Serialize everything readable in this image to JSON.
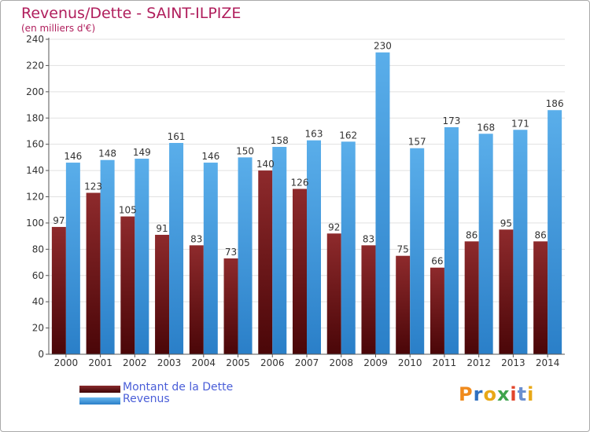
{
  "chart_data": {
    "type": "bar",
    "title": "Revenus/Dette - SAINT-ILPIZE",
    "subtitle": "(en milliers d'€)",
    "categories": [
      "2000",
      "2001",
      "2002",
      "2003",
      "2004",
      "2005",
      "2006",
      "2007",
      "2008",
      "2009",
      "2010",
      "2011",
      "2012",
      "2013",
      "2014"
    ],
    "series": [
      {
        "name": "Montant de la Dette",
        "values": [
          97,
          123,
          105,
          91,
          83,
          73,
          140,
          126,
          92,
          83,
          75,
          66,
          86,
          95,
          86
        ],
        "color": "#7a1f22"
      },
      {
        "name": "Revenus",
        "values": [
          146,
          148,
          149,
          161,
          146,
          150,
          158,
          163,
          162,
          230,
          157,
          173,
          168,
          171,
          186
        ],
        "color": "#4ea6e4"
      }
    ],
    "ylim": [
      0,
      240
    ],
    "yticks": [
      0,
      20,
      40,
      60,
      80,
      100,
      120,
      140,
      160,
      180,
      200,
      220,
      240
    ],
    "grid": true,
    "legend_position": "bottom-left"
  },
  "legend": [
    {
      "label": "Montant de la Dette",
      "color": "#7a1f22"
    },
    {
      "label": "Revenus",
      "color": "#4ea6e4"
    }
  ],
  "logo": {
    "text": "Proxiti"
  }
}
